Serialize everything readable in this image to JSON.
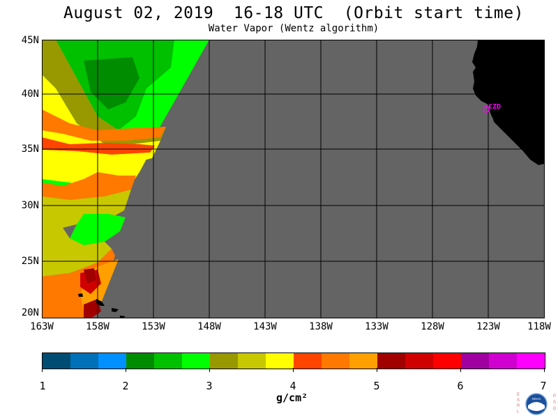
{
  "title": "August 02, 2019  16-18 UTC  (Orbit start time)",
  "subtitle": "Water Vapor (Wentz algorithm)",
  "map": {
    "lat_labels": [
      "45N",
      "40N",
      "35N",
      "30N",
      "25N",
      "20N"
    ],
    "lon_labels": [
      "163W",
      "158W",
      "153W",
      "148W",
      "143W",
      "138W",
      "133W",
      "128W",
      "123W",
      "118W"
    ],
    "station_label": "CZD",
    "colors": {
      "no_data": "#646464",
      "land": "#000000",
      "grid": "#000000",
      "station": "#ff00ff"
    }
  },
  "colorbar": {
    "unit": "g/cm²",
    "tick_labels": [
      "1",
      "2",
      "3",
      "4",
      "5",
      "6",
      "7"
    ],
    "colors": [
      "#004d73",
      "#0070b8",
      "#0090ff",
      "#008c00",
      "#00c000",
      "#00ff00",
      "#989800",
      "#c8c800",
      "#ffff00",
      "#ff4400",
      "#ff7800",
      "#ffa000",
      "#a00000",
      "#d00000",
      "#ff0000",
      "#a000a0",
      "#d000d0",
      "#ff00ff"
    ]
  },
  "logo": {
    "left_text": "ESRL",
    "right_text": "PSD",
    "seal_text": "NOAA"
  }
}
